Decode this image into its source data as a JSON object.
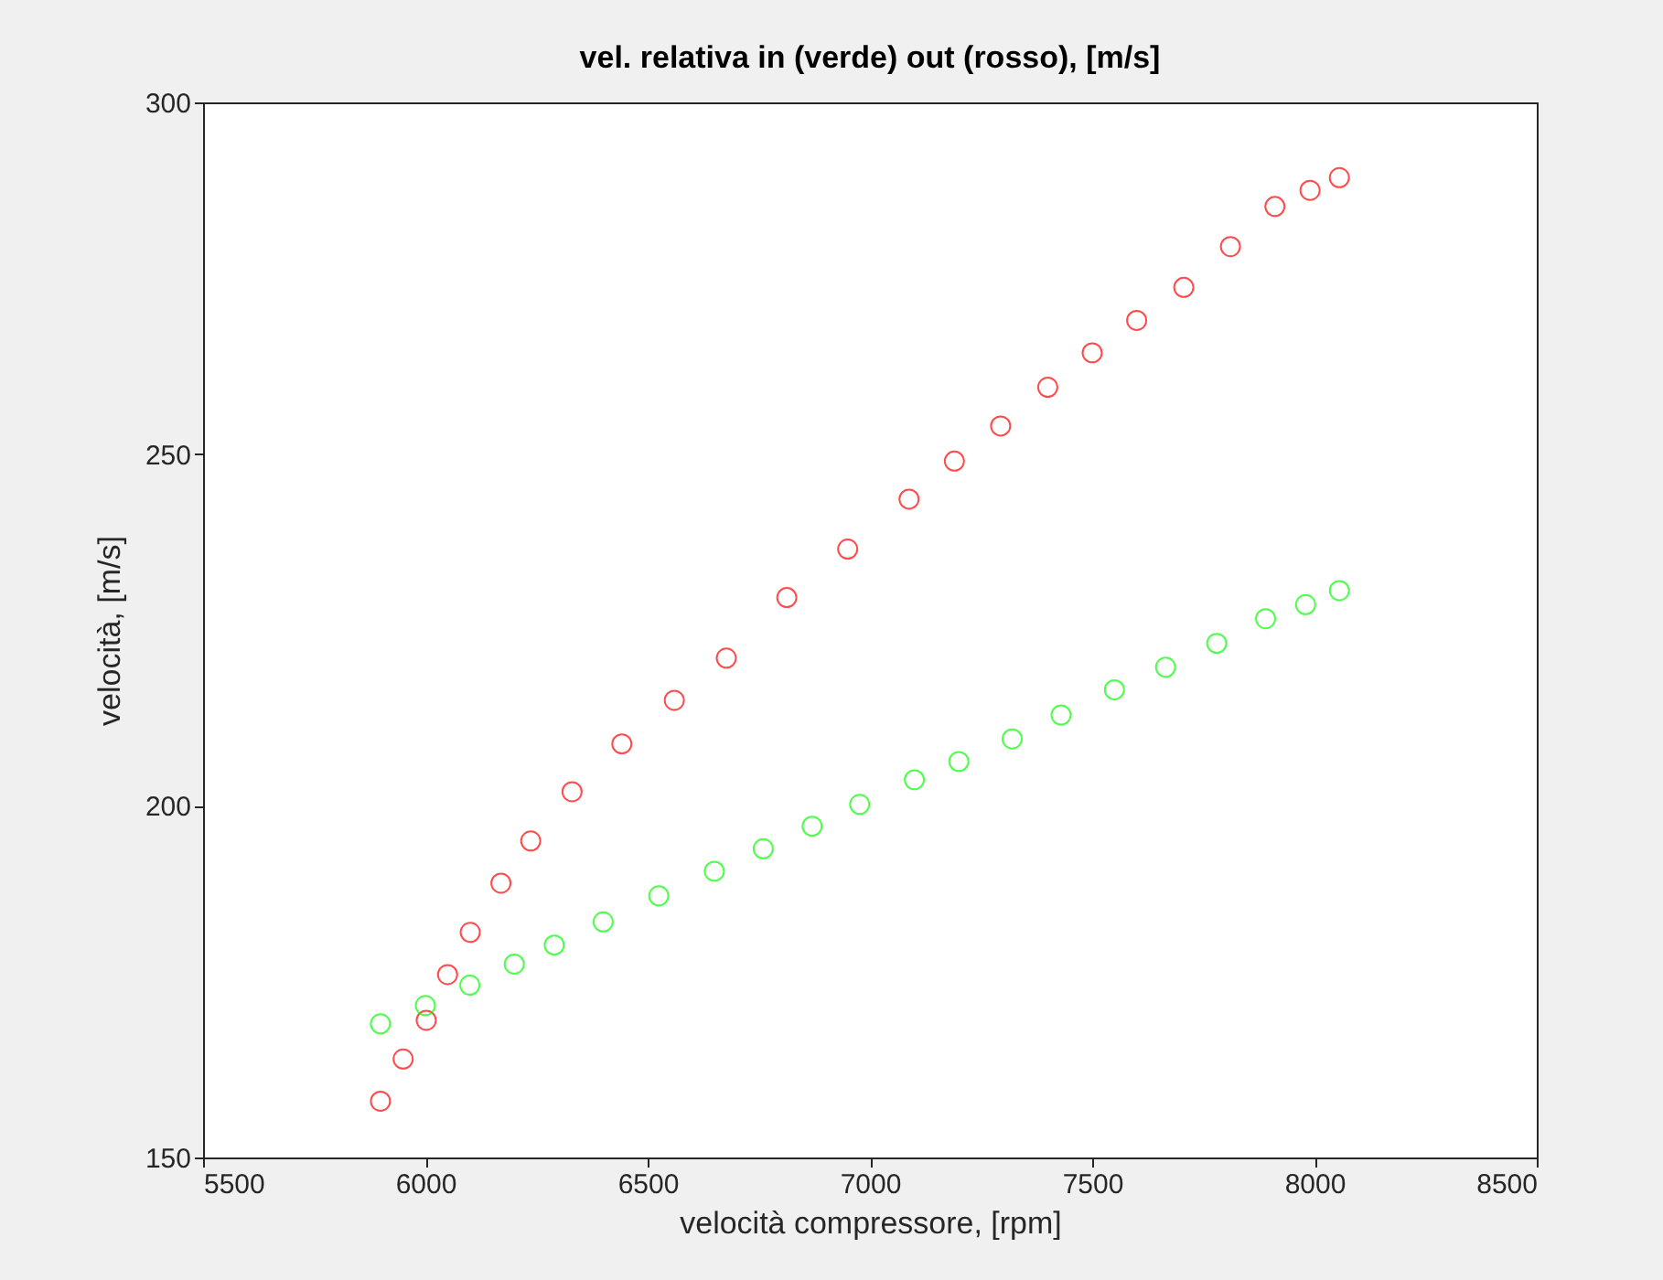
{
  "chart_data": {
    "type": "scatter",
    "title": "vel. relativa in (verde) out (rosso), [m/s]",
    "xlabel": "velocità compressore, [rpm]",
    "ylabel": "velocità, [m/s]",
    "xlim": [
      5500,
      8500
    ],
    "xticks": [
      5500,
      6000,
      6500,
      7000,
      7500,
      8000,
      8500
    ],
    "ylim": [
      150,
      300
    ],
    "yticks": [
      150,
      200,
      250,
      300
    ],
    "grid": false,
    "marker": "circle",
    "series": [
      {
        "color": "#ff0000",
        "x": [
          5899,
          5950,
          6002,
          6050,
          6101,
          6170,
          6237,
          6330,
          6442,
          6560,
          6677,
          6813,
          6950,
          7088,
          7190,
          7294,
          7400,
          7500,
          7600,
          7706,
          7811,
          7911,
          7990,
          8056
        ],
        "values": [
          158,
          164,
          169.5,
          176,
          182,
          189,
          195,
          202,
          208.8,
          215,
          221,
          229.6,
          236.5,
          243.6,
          249,
          254,
          259.5,
          264.4,
          269,
          273.7,
          279.5,
          285.2,
          287.5,
          289.3
        ]
      },
      {
        "color": "#00ff00",
        "x": [
          5899,
          6000,
          6100,
          6200,
          6290,
          6400,
          6525,
          6650,
          6760,
          6870,
          6977,
          7100,
          7200,
          7320,
          7430,
          7550,
          7665,
          7780,
          7890,
          7980,
          8056
        ],
        "values": [
          169,
          171.6,
          174.5,
          177.5,
          180.2,
          183.5,
          187.2,
          190.7,
          193.9,
          197.1,
          200.2,
          203.7,
          206.3,
          209.5,
          212.9,
          216.5,
          219.7,
          223.1,
          226.6,
          228.6,
          230.6
        ]
      }
    ]
  }
}
